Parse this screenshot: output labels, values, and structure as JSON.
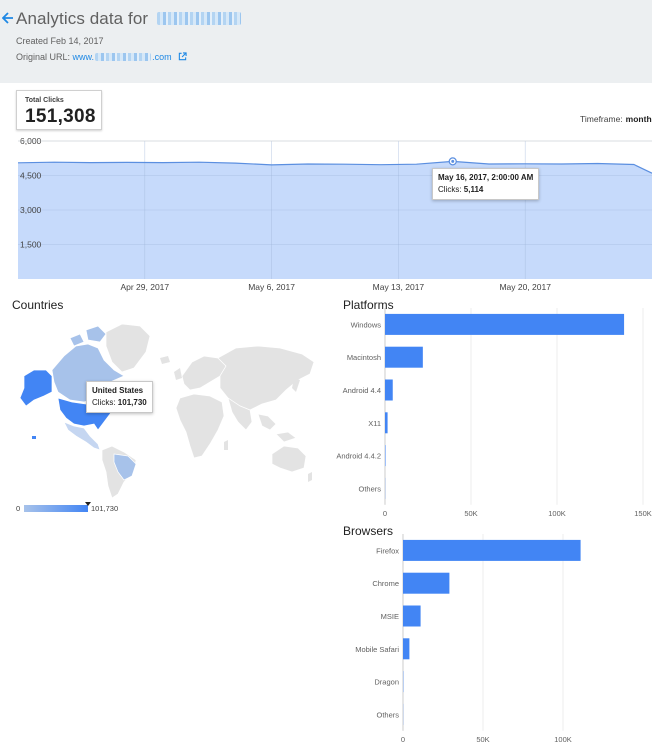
{
  "header": {
    "title_prefix": "Analytics data for",
    "created": "Created Feb 14, 2017",
    "original_url_label": "Original URL:",
    "original_url_prefix": "www.",
    "original_url_suffix": ".com"
  },
  "summary": {
    "total_clicks_label": "Total Clicks",
    "total_clicks_value": "151,308",
    "timeframe_label": "Timeframe:",
    "timeframe_value": "month"
  },
  "colors": {
    "accent": "#4285f4",
    "area_fill": "#c6dafb",
    "area_line": "#5b8fe0",
    "header_bg": "#eceff1",
    "link": "#1e88e5",
    "map_land": "#e3e3e3",
    "map_light": "#a7c2ea",
    "map_mid": "#7ba4e4",
    "map_dark": "#4285f4"
  },
  "chart_data": [
    {
      "type": "area",
      "name": "clicks-over-time",
      "yticks": [
        "6,000",
        "4,500",
        "3,000",
        "1,500"
      ],
      "ytick_values": [
        6000,
        4500,
        3000,
        1500
      ],
      "ylim": [
        0,
        6000
      ],
      "xticks": [
        "Apr 29, 2017",
        "May 6, 2017",
        "May 13, 2017",
        "May 20, 2017"
      ],
      "xtick_days": [
        7,
        14,
        21,
        28
      ],
      "x_range_days": [
        0,
        35
      ],
      "x_day_values": [
        0,
        2,
        4,
        6,
        8,
        10,
        12,
        14,
        16,
        18,
        20,
        22,
        24,
        26,
        28,
        30,
        32,
        34,
        35
      ],
      "values": [
        5050,
        5080,
        5060,
        5070,
        5060,
        5080,
        5040,
        4960,
        5000,
        4990,
        4970,
        4990,
        5114,
        5000,
        5010,
        5000,
        5020,
        4980,
        4600
      ],
      "tooltip": {
        "date": "May 16, 2017, 2:00:00 AM",
        "label": "Clicks:",
        "value": "5,114",
        "x_day": 24,
        "y": 5114
      },
      "grid": true
    },
    {
      "type": "bar",
      "name": "platforms",
      "title": "Platforms",
      "categories": [
        "Windows",
        "Macintosh",
        "Android 4.4",
        "X11",
        "Android 4.4.2",
        "Others"
      ],
      "values": [
        139000,
        22000,
        4500,
        1500,
        300,
        100
      ],
      "xticks": [
        "0",
        "50K",
        "100K",
        "150K"
      ],
      "xtick_values": [
        0,
        50000,
        100000,
        150000
      ],
      "xlim": [
        0,
        150000
      ]
    },
    {
      "type": "bar",
      "name": "browsers",
      "title": "Browsers",
      "categories": [
        "Firefox",
        "Chrome",
        "MSIE",
        "Mobile Safari",
        "Dragon",
        "Others"
      ],
      "values": [
        111000,
        29000,
        11000,
        4000,
        200,
        100
      ],
      "xticks": [
        "0",
        "50K",
        "100K"
      ],
      "xtick_values": [
        0,
        50000,
        100000
      ],
      "xlim": [
        0,
        150000
      ]
    }
  ],
  "countries": {
    "title": "Countries",
    "tooltip_country": "United States",
    "tooltip_label": "Clicks:",
    "tooltip_value": "101,730",
    "legend_min": "0",
    "legend_max": "101,730"
  }
}
